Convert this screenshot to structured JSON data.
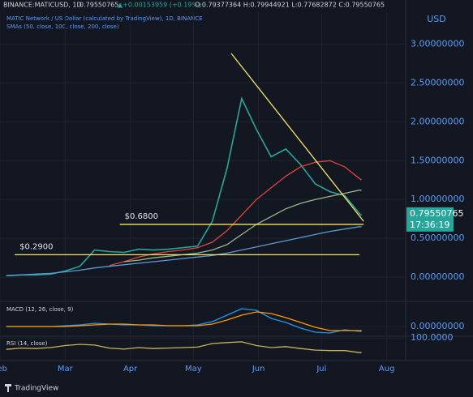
{
  "header": {
    "symbol": "BINANCE:MATICUSD, 1D",
    "last": "0.79550765",
    "change": "▲+0.00153959 (+0.19%)",
    "ohlc": "O:0.79377364 H:0.79944921 L:0.77682872 C:0.79550765",
    "brand": "TradingView"
  },
  "chart_data": [
    {
      "type": "line",
      "title": "MATIC Network / US Dollar (calculated by TradingView), 1D, BINANCE",
      "indicator": "SMAs (50, close, 100, close, 200, close)",
      "currency": "USD",
      "countdown": "17:36:19",
      "x": [
        0,
        7,
        14,
        21,
        28,
        35,
        42,
        49,
        56,
        63,
        70,
        77,
        84,
        91,
        98,
        105,
        112,
        119,
        126,
        133,
        140,
        147,
        154,
        161,
        168,
        169
      ],
      "series": [
        {
          "color": "#26a69a",
          "values": [
            0.02,
            0.03,
            0.03,
            0.04,
            0.08,
            0.14,
            0.35,
            0.33,
            0.32,
            0.36,
            0.35,
            0.36,
            0.38,
            0.4,
            0.72,
            1.4,
            2.3,
            1.9,
            1.55,
            1.65,
            1.45,
            1.2,
            1.1,
            1.05,
            0.82,
            0.7955
          ]
        },
        {
          "color": "#e0453a",
          "values": [
            null,
            null,
            null,
            null,
            null,
            null,
            null,
            0.15,
            0.2,
            0.26,
            0.3,
            0.33,
            0.35,
            0.38,
            0.45,
            0.6,
            0.8,
            1.0,
            1.15,
            1.3,
            1.42,
            1.48,
            1.5,
            1.42,
            1.27,
            1.25
          ]
        },
        {
          "color": "#9bb58e",
          "values": [
            null,
            null,
            null,
            null,
            null,
            null,
            null,
            null,
            0.2,
            0.22,
            0.25,
            0.27,
            0.29,
            0.31,
            0.35,
            0.42,
            0.55,
            0.68,
            0.78,
            0.88,
            0.95,
            1.0,
            1.04,
            1.08,
            1.12,
            1.12
          ]
        },
        {
          "color": "#5b9bd5",
          "values": [
            0.02,
            0.03,
            0.04,
            0.05,
            0.07,
            0.09,
            0.12,
            0.14,
            0.16,
            0.18,
            0.2,
            0.22,
            0.24,
            0.26,
            0.28,
            0.31,
            0.35,
            0.39,
            0.43,
            0.47,
            0.51,
            0.55,
            0.59,
            0.62,
            0.65,
            0.65
          ]
        }
      ],
      "trendline": {
        "x": [
          107,
          170
        ],
        "y": [
          2.88,
          0.72
        ]
      },
      "levels": [
        {
          "label": "$0.6800",
          "value": 0.68,
          "x": [
            54,
            170
          ]
        },
        {
          "label": "$0.2900",
          "value": 0.29,
          "x": [
            4,
            168
          ]
        }
      ],
      "xlim": [
        -3,
        190
      ],
      "ylim": [
        -0.29,
        3.41
      ],
      "xticks": [
        {
          "value": -3,
          "label": "Feb"
        },
        {
          "value": 28,
          "label": "Mar"
        },
        {
          "value": 59,
          "label": "Apr"
        },
        {
          "value": 89,
          "label": "May"
        },
        {
          "value": 120,
          "label": "Jun"
        },
        {
          "value": 150,
          "label": "Jul"
        },
        {
          "value": 181,
          "label": "Aug"
        }
      ],
      "yticks": [
        {
          "value": 0,
          "label": "0.00000000"
        },
        {
          "value": 0.5,
          "label": "0.50000000"
        },
        {
          "value": 1,
          "label": "1.00000000"
        },
        {
          "value": 1.5,
          "label": "1.50000000"
        },
        {
          "value": 2,
          "label": "2.00000000"
        },
        {
          "value": 2.5,
          "label": "2.50000000"
        },
        {
          "value": 3,
          "label": "3.00000000"
        }
      ]
    },
    {
      "type": "line",
      "title": "MACD (12, 26, close, 9)",
      "x": [
        0,
        7,
        14,
        21,
        28,
        35,
        42,
        49,
        56,
        63,
        70,
        77,
        84,
        91,
        98,
        105,
        112,
        119,
        126,
        133,
        140,
        147,
        154,
        161,
        168,
        169
      ],
      "series": [
        {
          "color": "#2196f3",
          "values": [
            0,
            0,
            0,
            0,
            0.01,
            0.02,
            0.04,
            0.03,
            0.02,
            0.02,
            0.01,
            0.01,
            0.01,
            0.02,
            0.06,
            0.14,
            0.22,
            0.2,
            0.1,
            0.05,
            -0.02,
            -0.07,
            -0.08,
            -0.04,
            -0.06,
            -0.06
          ]
        },
        {
          "color": "#ff9800",
          "values": [
            0,
            0,
            0,
            0,
            0,
            0.01,
            0.02,
            0.03,
            0.03,
            0.02,
            0.02,
            0.01,
            0.01,
            0.01,
            0.03,
            0.08,
            0.14,
            0.18,
            0.16,
            0.11,
            0.05,
            -0.01,
            -0.05,
            -0.05,
            -0.05,
            -0.05
          ]
        }
      ],
      "xlim": [
        -3,
        190
      ],
      "ylim": [
        -0.12,
        0.28
      ],
      "yticks": [
        {
          "value": 0,
          "label": "0.00000000"
        }
      ]
    },
    {
      "type": "line",
      "title": "RSI (14, close)",
      "x": [
        0,
        7,
        14,
        21,
        28,
        35,
        42,
        49,
        56,
        63,
        70,
        77,
        84,
        91,
        98,
        105,
        112,
        119,
        126,
        133,
        140,
        147,
        154,
        161,
        168,
        169
      ],
      "series": [
        {
          "color": "#c9b55a",
          "values": [
            55,
            60,
            58,
            62,
            70,
            75,
            72,
            60,
            56,
            62,
            58,
            60,
            62,
            64,
            78,
            82,
            85,
            70,
            62,
            66,
            58,
            52,
            50,
            50,
            42,
            42
          ]
        }
      ],
      "xlim": [
        -3,
        190
      ],
      "ylim": [
        20,
        104
      ],
      "yticks": [
        {
          "value": 100,
          "label": "100.0000"
        }
      ]
    }
  ]
}
